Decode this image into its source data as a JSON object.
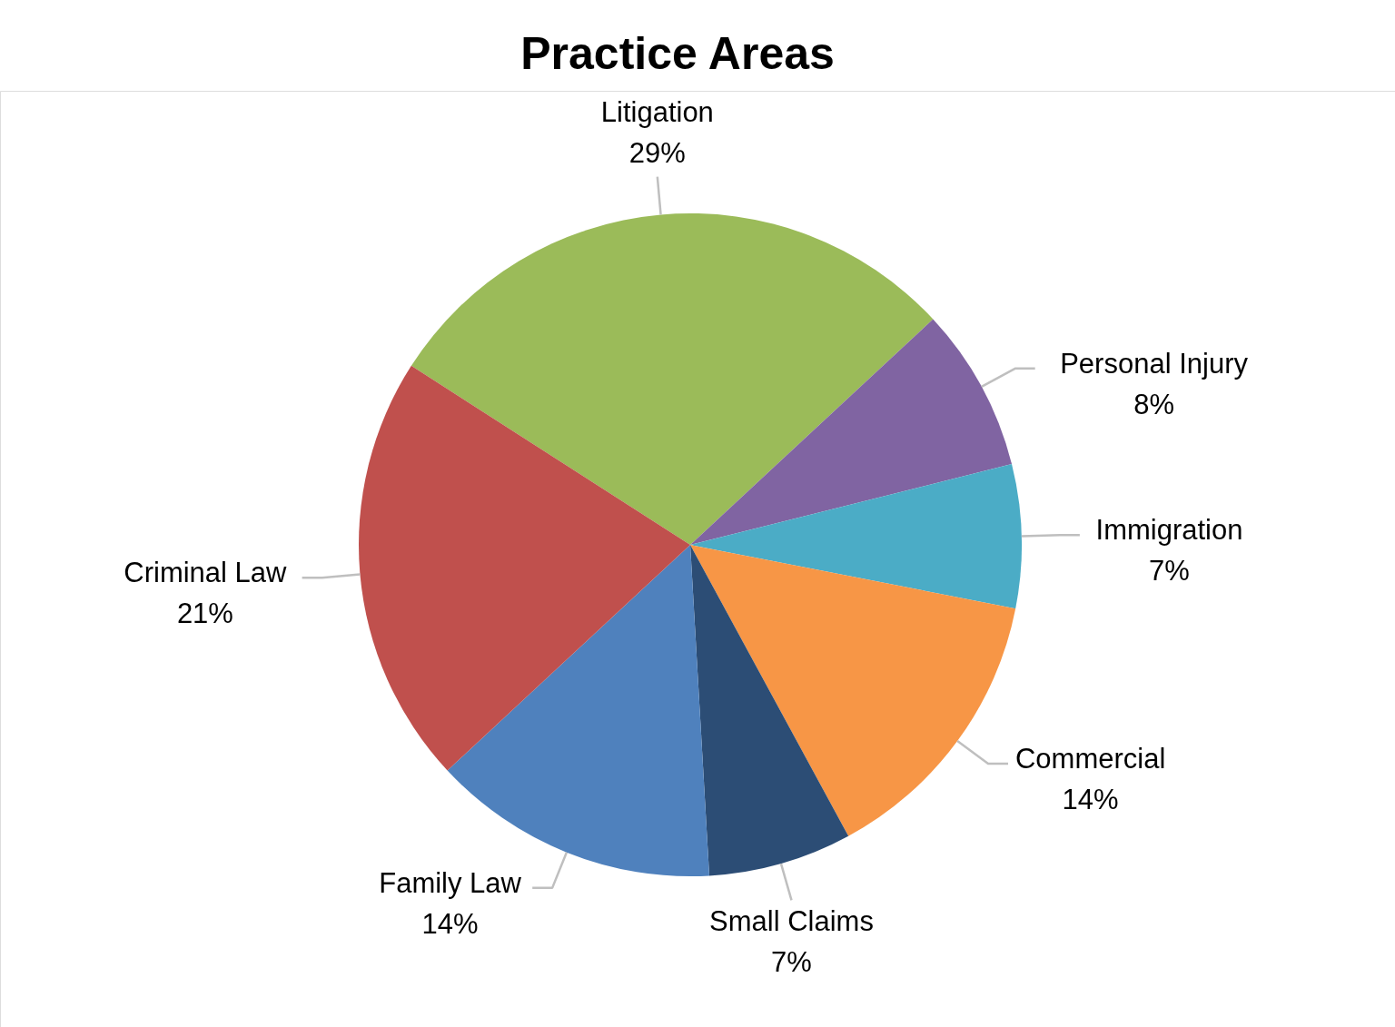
{
  "chart_data": {
    "type": "pie",
    "title": "Practice Areas",
    "categories": [
      "Litigation",
      "Personal Injury",
      "Immigration",
      "Commercial",
      "Small Claims",
      "Family Law",
      "Criminal Law"
    ],
    "values": [
      29,
      8,
      7,
      14,
      7,
      14,
      21
    ],
    "value_labels": [
      "29%",
      "8%",
      "7%",
      "14%",
      "7%",
      "14%",
      "21%"
    ],
    "colors": [
      "#9bbb59",
      "#8064a2",
      "#4bacc6",
      "#f79646",
      "#2c4d75",
      "#4f81bd",
      "#c0504d"
    ]
  }
}
